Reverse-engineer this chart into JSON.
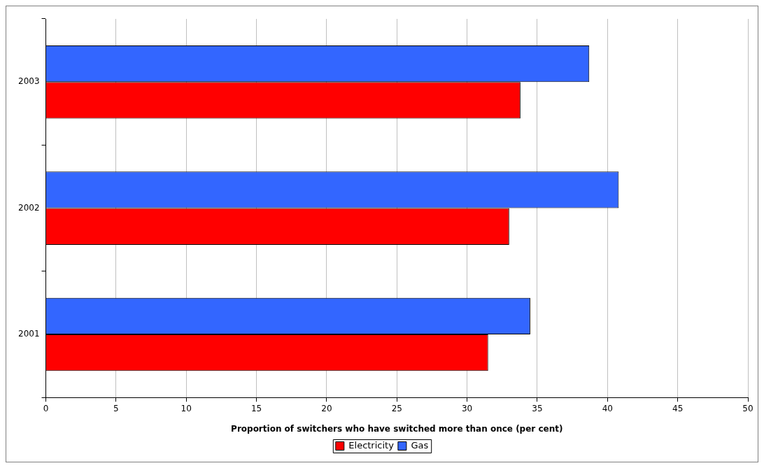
{
  "chart_data": {
    "type": "bar",
    "orientation": "horizontal",
    "xlabel": "Proportion of switchers who have switched more than once (per cent)",
    "categories": [
      "2003",
      "2002",
      "2001"
    ],
    "series": [
      {
        "name": "Electricity",
        "color": "#ff0000",
        "values": [
          33.8,
          33.0,
          31.5
        ]
      },
      {
        "name": "Gas",
        "color": "#3366ff",
        "values": [
          38.7,
          40.8,
          34.5
        ]
      }
    ],
    "xlim": [
      0,
      50
    ],
    "xticks": [
      0,
      5,
      10,
      15,
      20,
      25,
      30,
      35,
      40,
      45,
      50
    ],
    "grid": "x",
    "legend": "bottom"
  }
}
